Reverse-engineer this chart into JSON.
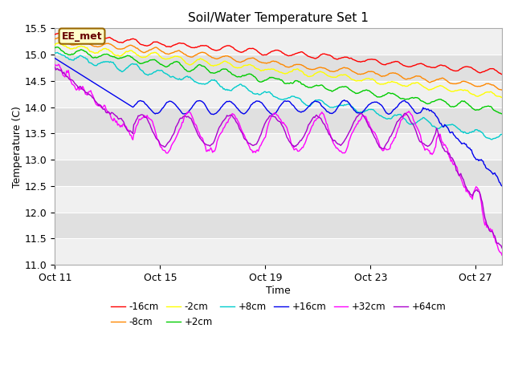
{
  "title": "Soil/Water Temperature Set 1",
  "xlabel": "Time",
  "ylabel": "Temperature (C)",
  "ylim": [
    11.0,
    15.5
  ],
  "yticks": [
    11.0,
    11.5,
    12.0,
    12.5,
    13.0,
    13.5,
    14.0,
    14.5,
    15.0,
    15.5
  ],
  "xtick_labels": [
    "Oct 11",
    "Oct 15",
    "Oct 19",
    "Oct 23",
    "Oct 27"
  ],
  "xtick_positions": [
    0,
    4,
    8,
    12,
    16
  ],
  "annotation_text": "EE_met",
  "background_color": "#ffffff",
  "series": [
    {
      "label": "-16cm",
      "color": "#ff0000",
      "start": 15.38,
      "end": 14.67
    },
    {
      "label": "-8cm",
      "color": "#ff8800",
      "start": 15.27,
      "end": 14.38
    },
    {
      "label": "-2cm",
      "color": "#ffff00",
      "start": 15.18,
      "end": 14.23
    },
    {
      "label": "+2cm",
      "color": "#00cc00",
      "start": 15.1,
      "end": 13.93
    },
    {
      "label": "+8cm",
      "color": "#00cccc",
      "start": 15.02,
      "end": 13.43
    },
    {
      "label": "+16cm",
      "color": "#0000ee",
      "start": 14.93,
      "end": 12.55
    },
    {
      "label": "+32cm",
      "color": "#ff00ff",
      "start": 14.8,
      "end": 11.25
    },
    {
      "label": "+64cm",
      "color": "#aa00cc",
      "start": 14.77,
      "end": 11.28
    }
  ]
}
